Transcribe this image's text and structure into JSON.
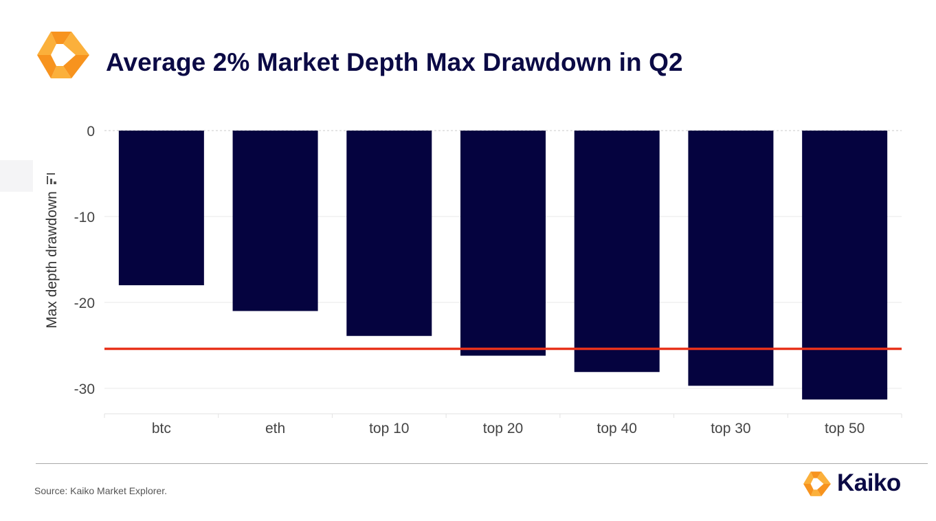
{
  "header": {
    "title": "Average 2% Market Depth Max Drawdown in Q2",
    "logo_icon": "kaiko-logo-icon"
  },
  "footer": {
    "source": "Source: Kaiko Market Explorer.",
    "brand_name": "Kaiko",
    "brand_icon": "kaiko-logo-icon"
  },
  "colors": {
    "bar": "#05033f",
    "reference_line": "#e8321b",
    "title": "#0b0a45",
    "logo_orange": "#f7931e",
    "logo_light": "#fbb03b"
  },
  "chart_data": {
    "type": "bar",
    "title": "Average 2% Market Depth Max Drawdown in Q2",
    "xlabel": "",
    "ylabel": "Max depth drawdown",
    "categories": [
      "btc",
      "eth",
      "top 10",
      "top 20",
      "top 40",
      "top 30",
      "top 50"
    ],
    "values": [
      -18,
      -21,
      -23.9,
      -26.2,
      -28.1,
      -29.7,
      -31.3
    ],
    "ylim": [
      -32.5,
      1
    ],
    "yticks": [
      0,
      -10,
      -20,
      -30
    ],
    "ytick_labels": [
      "0",
      "-10",
      "-20",
      "-30"
    ],
    "reference_line": {
      "value": -25.4
    },
    "grid": true,
    "legend": "none"
  }
}
